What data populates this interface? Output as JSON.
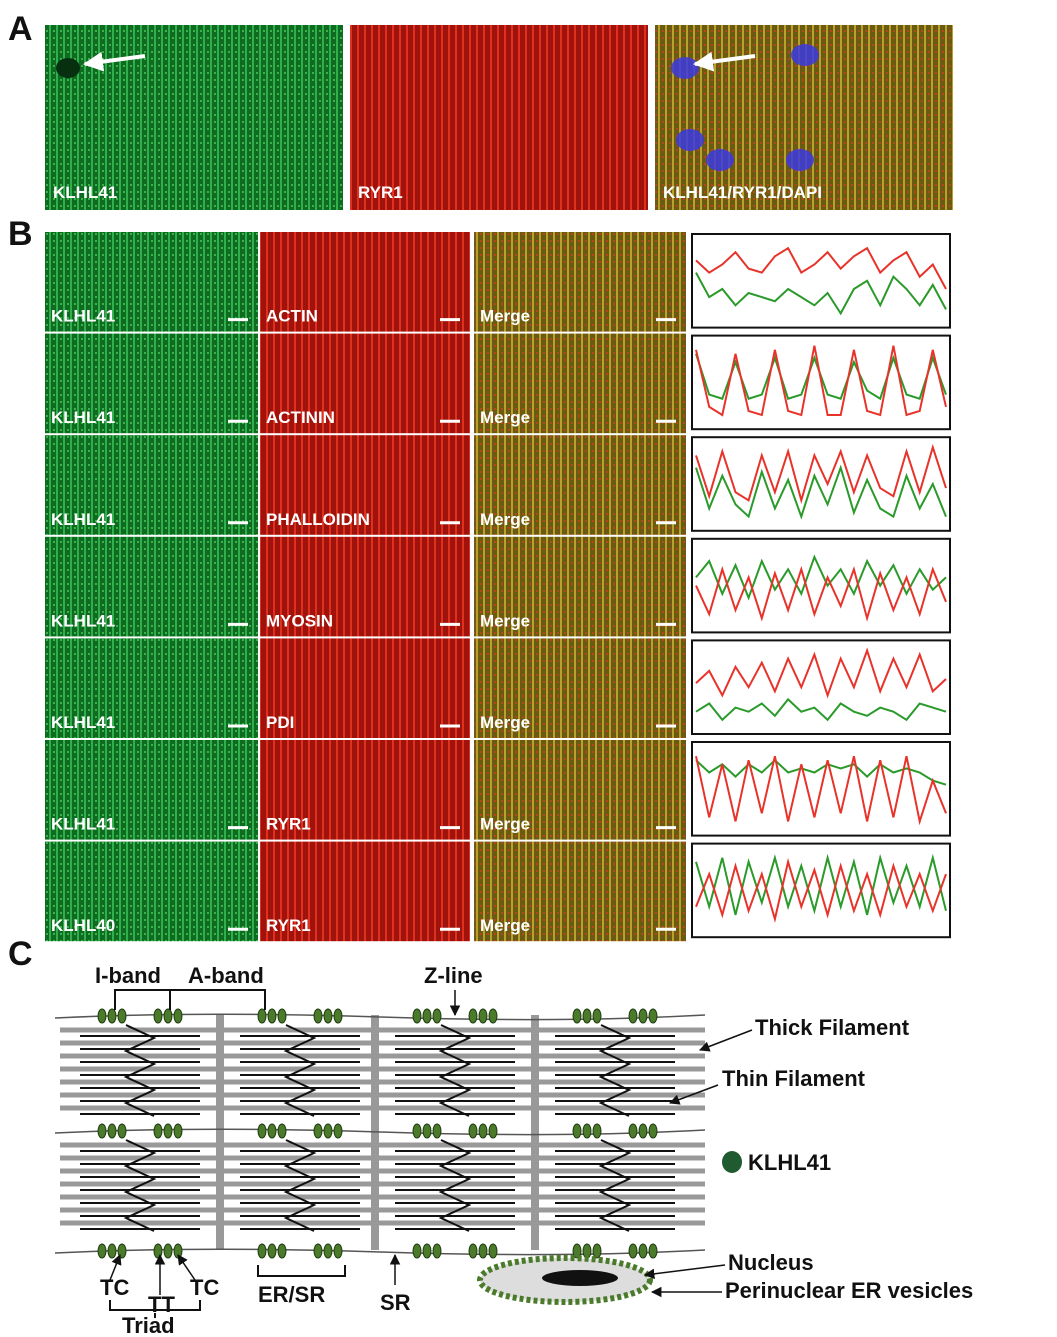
{
  "panel_a": {
    "label": "A",
    "images": [
      "KLHL41",
      "RYR1",
      "KLHL41/RYR1/DAPI"
    ]
  },
  "panel_b": {
    "label": "B",
    "rows": [
      [
        "KLHL41",
        "ACTIN",
        "Merge"
      ],
      [
        "KLHL41",
        "ACTININ",
        "Merge"
      ],
      [
        "KLHL41",
        "PHALLOIDIN",
        "Merge"
      ],
      [
        "KLHL41",
        "MYOSIN",
        "Merge"
      ],
      [
        "KLHL41",
        "PDI",
        "Merge"
      ],
      [
        "KLHL41",
        "RYR1",
        "Merge"
      ],
      [
        "KLHL40",
        "RYR1",
        "Merge"
      ]
    ],
    "profiles": [
      {
        "red": [
          0.75,
          0.6,
          0.7,
          0.85,
          0.65,
          0.6,
          0.8,
          0.9,
          0.6,
          0.7,
          0.85,
          0.65,
          0.8,
          0.9,
          0.6,
          0.75,
          0.85,
          0.55,
          0.7,
          0.4
        ],
        "green": [
          0.6,
          0.3,
          0.4,
          0.2,
          0.35,
          0.3,
          0.25,
          0.4,
          0.3,
          0.2,
          0.35,
          0.1,
          0.4,
          0.5,
          0.2,
          0.55,
          0.4,
          0.2,
          0.45,
          0.15
        ]
      },
      {
        "red": [
          0.9,
          0.2,
          0.1,
          0.85,
          0.15,
          0.1,
          0.9,
          0.15,
          0.1,
          0.95,
          0.1,
          0.1,
          0.9,
          0.15,
          0.1,
          0.95,
          0.1,
          0.15,
          0.9,
          0.2
        ],
        "green": [
          0.85,
          0.35,
          0.3,
          0.75,
          0.3,
          0.35,
          0.8,
          0.3,
          0.35,
          0.8,
          0.35,
          0.3,
          0.75,
          0.4,
          0.3,
          0.8,
          0.35,
          0.3,
          0.8,
          0.35
        ]
      },
      {
        "red": [
          0.85,
          0.35,
          0.9,
          0.4,
          0.3,
          0.85,
          0.4,
          0.9,
          0.3,
          0.85,
          0.5,
          0.9,
          0.4,
          0.85,
          0.45,
          0.35,
          0.9,
          0.4,
          0.95,
          0.45
        ],
        "green": [
          0.7,
          0.2,
          0.6,
          0.25,
          0.1,
          0.65,
          0.2,
          0.55,
          0.1,
          0.6,
          0.25,
          0.7,
          0.15,
          0.55,
          0.2,
          0.1,
          0.6,
          0.2,
          0.5,
          0.1
        ]
      },
      {
        "red": [
          0.5,
          0.15,
          0.7,
          0.2,
          0.6,
          0.1,
          0.65,
          0.2,
          0.7,
          0.15,
          0.6,
          0.25,
          0.7,
          0.1,
          0.65,
          0.2,
          0.6,
          0.15,
          0.7,
          0.3
        ],
        "green": [
          0.6,
          0.8,
          0.4,
          0.75,
          0.35,
          0.8,
          0.45,
          0.7,
          0.4,
          0.85,
          0.5,
          0.7,
          0.4,
          0.8,
          0.5,
          0.75,
          0.4,
          0.7,
          0.45,
          0.6
        ]
      },
      {
        "red": [
          0.55,
          0.7,
          0.4,
          0.75,
          0.5,
          0.8,
          0.45,
          0.85,
          0.5,
          0.9,
          0.4,
          0.85,
          0.5,
          0.95,
          0.45,
          0.85,
          0.5,
          0.9,
          0.45,
          0.6
        ],
        "green": [
          0.2,
          0.3,
          0.1,
          0.25,
          0.2,
          0.3,
          0.15,
          0.35,
          0.2,
          0.25,
          0.1,
          0.3,
          0.2,
          0.15,
          0.25,
          0.2,
          0.1,
          0.3,
          0.25,
          0.2
        ]
      },
      {
        "red": [
          0.9,
          0.15,
          0.8,
          0.1,
          0.85,
          0.2,
          0.9,
          0.1,
          0.8,
          0.15,
          0.85,
          0.2,
          0.9,
          0.1,
          0.85,
          0.15,
          0.9,
          0.1,
          0.6,
          0.2
        ],
        "green": [
          0.85,
          0.7,
          0.8,
          0.65,
          0.8,
          0.7,
          0.85,
          0.7,
          0.75,
          0.7,
          0.8,
          0.75,
          0.8,
          0.65,
          0.8,
          0.7,
          0.75,
          0.7,
          0.6,
          0.55
        ]
      },
      {
        "red": [
          0.3,
          0.7,
          0.2,
          0.8,
          0.25,
          0.7,
          0.15,
          0.85,
          0.3,
          0.75,
          0.2,
          0.8,
          0.25,
          0.7,
          0.2,
          0.8,
          0.3,
          0.7,
          0.25,
          0.7
        ],
        "green": [
          0.85,
          0.3,
          0.9,
          0.2,
          0.85,
          0.35,
          0.9,
          0.3,
          0.8,
          0.25,
          0.9,
          0.3,
          0.85,
          0.2,
          0.9,
          0.35,
          0.8,
          0.3,
          0.9,
          0.25
        ]
      }
    ]
  },
  "panel_c": {
    "label": "C",
    "i_band": "I-band",
    "a_band": "A-band",
    "z_line": "Z-line",
    "thick": "Thick Filament",
    "thin": "Thin Filament",
    "klhl41": "KLHL41",
    "nucleus": "Nucleus",
    "perinuclear": "Perinuclear ER vesicles",
    "tc1": "TC",
    "tt": "TT",
    "tc2": "TC",
    "triad": "Triad",
    "er_sr": "ER/SR",
    "sr": "SR"
  }
}
